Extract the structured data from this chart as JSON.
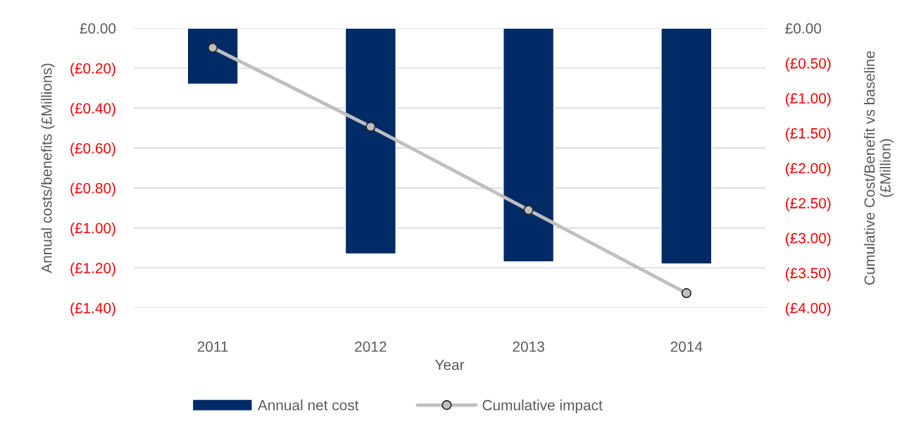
{
  "chart_data": {
    "type": "bar",
    "categories": [
      "2011",
      "2012",
      "2013",
      "2014"
    ],
    "xlabel": "Year",
    "ylabel": "Annual costs/benefits (£Millions)",
    "y2label": "Cumulative Cost/Benefit vs baseline\n(£Million)",
    "series": [
      {
        "name": "Annual net cost",
        "color": "#002b66",
        "values": [
          -0.28,
          -1.13,
          -1.17,
          -1.18
        ]
      },
      {
        "name": "Cumulative impact",
        "type": "line",
        "axis": "y2",
        "color": "#bfbfbf",
        "marker": "circle",
        "line_style": "solid",
        "values": [
          -0.28,
          -1.41,
          -2.6,
          -3.79
        ]
      }
    ],
    "ylim": [
      -1.4,
      0
    ],
    "yticks": [
      {
        "value": 0,
        "label": "£0.00"
      },
      {
        "value": -0.2,
        "label": "(£0.20)"
      },
      {
        "value": -0.4,
        "label": "(£0.40)"
      },
      {
        "value": -0.6,
        "label": "(£0.60)"
      },
      {
        "value": -0.8,
        "label": "(£0.80)"
      },
      {
        "value": -1.0,
        "label": "(£1.00)"
      },
      {
        "value": -1.2,
        "label": "(£1.20)"
      },
      {
        "value": -1.4,
        "label": "(£1.40)"
      }
    ],
    "y2lim": [
      -4,
      0
    ],
    "y2ticks": [
      {
        "value": 0,
        "label": "£0.00"
      },
      {
        "value": -0.5,
        "label": "(£0.50)"
      },
      {
        "value": -1.0,
        "label": "(£1.00)"
      },
      {
        "value": -1.5,
        "label": "(£1.50)"
      },
      {
        "value": -2.0,
        "label": "(£2.00)"
      },
      {
        "value": -2.5,
        "label": "(£2.50)"
      },
      {
        "value": -3.0,
        "label": "(£3.00)"
      },
      {
        "value": -3.5,
        "label": "(£3.50)"
      },
      {
        "value": -4.0,
        "label": "(£4.00)"
      }
    ],
    "grid": "y",
    "legend": "bottom"
  }
}
